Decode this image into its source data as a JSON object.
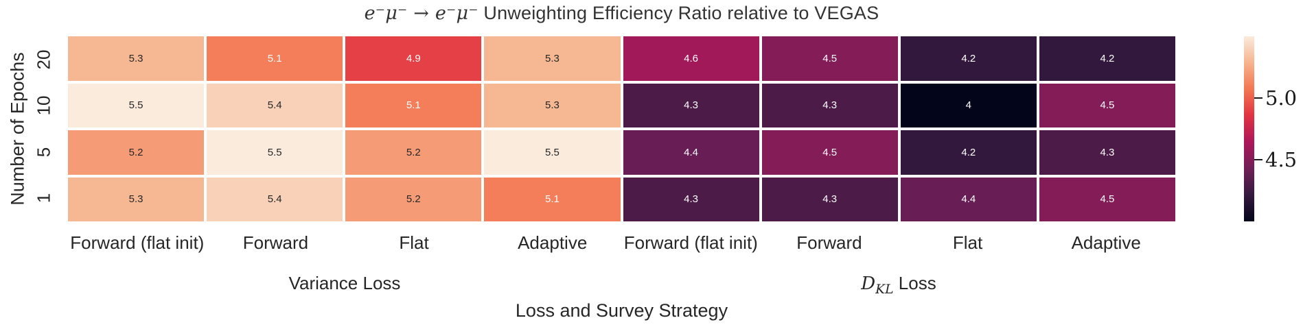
{
  "title": {
    "math": "e⁻μ⁻ → e⁻μ⁻",
    "text": " Unweighting Efficiency Ratio relative to VEGAS"
  },
  "chart_data": {
    "type": "heatmap",
    "title": "e⁻μ⁻ → e⁻μ⁻ Unweighting Efficiency Ratio relative to VEGAS",
    "xlabel": "Loss and Survey Strategy",
    "ylabel": "Number of Epochs",
    "x_categories": [
      "Forward (flat init)",
      "Forward",
      "Flat",
      "Adaptive",
      "Forward (flat init)",
      "Forward",
      "Flat",
      "Adaptive"
    ],
    "x_groups": [
      {
        "label": "Variance Loss",
        "span": 4
      },
      {
        "prefix": "D",
        "sub": "KL",
        "suffix": " Loss",
        "span": 4
      }
    ],
    "y_categories": [
      "20",
      "10",
      "5",
      "1"
    ],
    "values": [
      [
        5.3,
        5.1,
        4.9,
        5.3,
        4.6,
        4.5,
        4.2,
        4.2
      ],
      [
        5.5,
        5.4,
        5.1,
        5.3,
        4.3,
        4.3,
        4.0,
        4.5
      ],
      [
        5.2,
        5.5,
        5.2,
        5.5,
        4.4,
        4.5,
        4.2,
        4.3
      ],
      [
        5.3,
        5.4,
        5.2,
        5.1,
        4.3,
        4.3,
        4.4,
        4.5
      ]
    ],
    "cell_labels": [
      [
        "5.3",
        "5.1",
        "4.9",
        "5.3",
        "4.6",
        "4.5",
        "4.2",
        "4.2"
      ],
      [
        "5.5",
        "5.4",
        "5.1",
        "5.3",
        "4.3",
        "4.3",
        "4",
        "4.5"
      ],
      [
        "5.2",
        "5.5",
        "5.2",
        "5.5",
        "4.4",
        "4.5",
        "4.2",
        "4.3"
      ],
      [
        "5.3",
        "5.4",
        "5.2",
        "5.1",
        "4.3",
        "4.3",
        "4.4",
        "4.5"
      ]
    ],
    "vmin": 4.0,
    "vmax": 5.5,
    "colorbar_ticks": [
      "5.0",
      "4.5"
    ],
    "legend_position": "right",
    "grid": false,
    "colormap": {
      "name": "rocket",
      "stops": [
        "#03051a",
        "#35193e",
        "#701f57",
        "#ad1759",
        "#e13342",
        "#f37651",
        "#f6b48e",
        "#faebdd"
      ]
    }
  },
  "colors": {
    "background": "#ffffff",
    "text": "#262626",
    "cell_text_dark": "#262626",
    "cell_text_light": "#ffffff",
    "tick_color": "#1a1a1a"
  }
}
